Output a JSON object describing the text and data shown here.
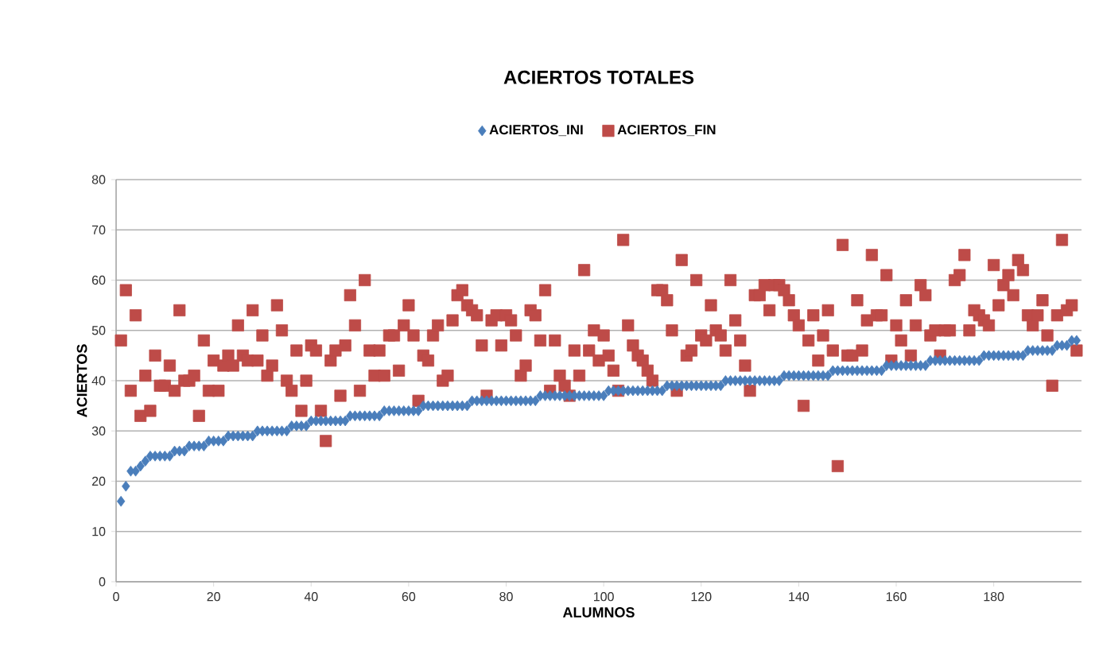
{
  "chart_data": {
    "type": "scatter",
    "title": "ACIERTOS TOTALES",
    "xlabel": "ALUMNOS",
    "ylabel": "ACIERTOS",
    "x": [
      1,
      2,
      3,
      4,
      5,
      6,
      7,
      8,
      9,
      10,
      11,
      12,
      13,
      14,
      15,
      16,
      17,
      18,
      19,
      20,
      21,
      22,
      23,
      24,
      25,
      26,
      27,
      28,
      29,
      30,
      31,
      32,
      33,
      34,
      35,
      36,
      37,
      38,
      39,
      40,
      41,
      42,
      43,
      44,
      45,
      46,
      47,
      48,
      49,
      50,
      51,
      52,
      53,
      54,
      55,
      56,
      57,
      58,
      59,
      60,
      61,
      62,
      63,
      64,
      65,
      66,
      67,
      68,
      69,
      70,
      71,
      72,
      73,
      74,
      75,
      76,
      77,
      78,
      79,
      80,
      81,
      82,
      83,
      84,
      85,
      86,
      87,
      88,
      89,
      90,
      91,
      92,
      93,
      94,
      95,
      96,
      97,
      98,
      99,
      100,
      101,
      102,
      103,
      104,
      105,
      106,
      107,
      108,
      109,
      110,
      111,
      112,
      113,
      114,
      115,
      116,
      117,
      118,
      119,
      120,
      121,
      122,
      123,
      124,
      125,
      126,
      127,
      128,
      129,
      130,
      131,
      132,
      133,
      134,
      135,
      136,
      137,
      138,
      139,
      140,
      141,
      142,
      143,
      144,
      145,
      146,
      147,
      148,
      149,
      150,
      151,
      152,
      153,
      154,
      155,
      156,
      157,
      158,
      159,
      160,
      161,
      162,
      163,
      164,
      165,
      166,
      167,
      168,
      169,
      170,
      171,
      172,
      173,
      174,
      175,
      176,
      177,
      178,
      179,
      180,
      181,
      182,
      183,
      184,
      185,
      186,
      187,
      188,
      189,
      190,
      191,
      192,
      193,
      194,
      195,
      196,
      197
    ],
    "series": [
      {
        "name": "ACIERTOS_INI",
        "color": "#4a7ebb",
        "marker": "diamond",
        "values": [
          16,
          19,
          22,
          22,
          23,
          24,
          25,
          25,
          25,
          25,
          25,
          26,
          26,
          26,
          27,
          27,
          27,
          27,
          28,
          28,
          28,
          28,
          29,
          29,
          29,
          29,
          29,
          29,
          30,
          30,
          30,
          30,
          30,
          30,
          30,
          31,
          31,
          31,
          31,
          32,
          32,
          32,
          32,
          32,
          32,
          32,
          32,
          33,
          33,
          33,
          33,
          33,
          33,
          33,
          34,
          34,
          34,
          34,
          34,
          34,
          34,
          34,
          35,
          35,
          35,
          35,
          35,
          35,
          35,
          35,
          35,
          35,
          36,
          36,
          36,
          36,
          36,
          36,
          36,
          36,
          36,
          36,
          36,
          36,
          36,
          36,
          37,
          37,
          37,
          37,
          37,
          37,
          37,
          37,
          37,
          37,
          37,
          37,
          37,
          37,
          38,
          38,
          38,
          38,
          38,
          38,
          38,
          38,
          38,
          38,
          38,
          38,
          39,
          39,
          39,
          39,
          39,
          39,
          39,
          39,
          39,
          39,
          39,
          39,
          40,
          40,
          40,
          40,
          40,
          40,
          40,
          40,
          40,
          40,
          40,
          40,
          41,
          41,
          41,
          41,
          41,
          41,
          41,
          41,
          41,
          41,
          42,
          42,
          42,
          42,
          42,
          42,
          42,
          42,
          42,
          42,
          42,
          43,
          43,
          43,
          43,
          43,
          43,
          43,
          43,
          43,
          44,
          44,
          44,
          44,
          44,
          44,
          44,
          44,
          44,
          44,
          44,
          45,
          45,
          45,
          45,
          45,
          45,
          45,
          45,
          45,
          46,
          46,
          46,
          46,
          46,
          46,
          47,
          47,
          47,
          48,
          48
        ]
      },
      {
        "name": "ACIERTOS_FIN",
        "color": "#be4b48",
        "marker": "square",
        "values": [
          48,
          58,
          38,
          53,
          33,
          41,
          34,
          45,
          39,
          39,
          43,
          38,
          54,
          40,
          40,
          41,
          33,
          48,
          38,
          44,
          38,
          43,
          45,
          43,
          51,
          45,
          44,
          54,
          44,
          49,
          41,
          43,
          55,
          50,
          40,
          38,
          46,
          34,
          40,
          47,
          46,
          34,
          28,
          44,
          46,
          37,
          47,
          57,
          51,
          38,
          60,
          46,
          41,
          46,
          41,
          49,
          49,
          42,
          51,
          55,
          49,
          36,
          45,
          44,
          49,
          51,
          40,
          41,
          52,
          57,
          58,
          55,
          54,
          53,
          47,
          37,
          52,
          53,
          47,
          53,
          52,
          49,
          41,
          43,
          54,
          53,
          48,
          58,
          38,
          48,
          41,
          39,
          37,
          46,
          41,
          62,
          46,
          50,
          44,
          49,
          45,
          42,
          38,
          68,
          51,
          47,
          45,
          44,
          42,
          40,
          58,
          58,
          56,
          50,
          38,
          64,
          45,
          46,
          60,
          49,
          48,
          55,
          50,
          49,
          46,
          60,
          52,
          48,
          43,
          38,
          57,
          57,
          59,
          54,
          59,
          59,
          58,
          56,
          53,
          51,
          35,
          48,
          53,
          44,
          49,
          54,
          46,
          23,
          67,
          45,
          45,
          56,
          46,
          52,
          65,
          53,
          53,
          61,
          44,
          51,
          48,
          56,
          45,
          51,
          59,
          57,
          49,
          50,
          45,
          50,
          50,
          60,
          61,
          65,
          50,
          54,
          53,
          52,
          51,
          63,
          55,
          59,
          61,
          57,
          64,
          62,
          53,
          51,
          53,
          56,
          49,
          39,
          53,
          68,
          54,
          55,
          46
        ]
      }
    ],
    "xlim": [
      0,
      198
    ],
    "xticks": [
      0,
      20,
      40,
      60,
      80,
      100,
      120,
      140,
      160,
      180
    ],
    "ylim": [
      0,
      80
    ],
    "yticks": [
      0,
      10,
      20,
      30,
      40,
      50,
      60,
      70,
      80
    ],
    "grid": "y",
    "legend": "top"
  }
}
